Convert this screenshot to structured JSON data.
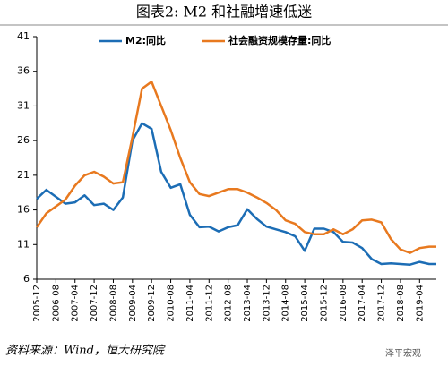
{
  "chart_data": {
    "type": "line",
    "title": "图表2: M2 和社融增速低迷",
    "source": "资料来源：Wind，恒大研究院",
    "watermark": "泽平宏观",
    "x": [
      "2005-12",
      "2006-04",
      "2006-08",
      "2006-12",
      "2007-04",
      "2007-08",
      "2007-12",
      "2008-04",
      "2008-08",
      "2008-12",
      "2009-04",
      "2009-08",
      "2009-12",
      "2010-04",
      "2010-08",
      "2010-12",
      "2011-04",
      "2011-08",
      "2011-12",
      "2012-04",
      "2012-08",
      "2012-12",
      "2013-04",
      "2013-08",
      "2013-12",
      "2014-04",
      "2014-08",
      "2014-12",
      "2015-04",
      "2015-08",
      "2015-12",
      "2016-04",
      "2016-08",
      "2016-12",
      "2017-04",
      "2017-08",
      "2017-12",
      "2018-04",
      "2018-08",
      "2018-12",
      "2019-04",
      "2019-08",
      "2019-11"
    ],
    "series": [
      {
        "name": "M2:同比",
        "color": "#1c6db5",
        "values": [
          17.6,
          18.9,
          17.9,
          16.9,
          17.1,
          18.1,
          16.7,
          16.9,
          16.0,
          17.8,
          26.0,
          28.5,
          27.7,
          21.5,
          19.2,
          19.7,
          15.3,
          13.5,
          13.6,
          12.9,
          13.5,
          13.8,
          16.1,
          14.7,
          13.6,
          13.2,
          12.8,
          12.2,
          10.1,
          13.3,
          13.3,
          12.8,
          11.4,
          11.3,
          10.5,
          8.9,
          8.2,
          8.3,
          8.2,
          8.1,
          8.5,
          8.2,
          8.2
        ]
      },
      {
        "name": "社会融资规模存量:同比",
        "color": "#e8791f",
        "values": [
          13.5,
          15.5,
          16.5,
          17.5,
          19.5,
          21.0,
          21.5,
          20.8,
          19.8,
          20.0,
          26.5,
          33.5,
          34.5,
          31.0,
          27.5,
          23.5,
          20.0,
          18.3,
          18.0,
          18.5,
          19.0,
          19.0,
          18.5,
          17.8,
          17.0,
          16.0,
          14.5,
          14.0,
          12.8,
          12.5,
          12.5,
          13.2,
          12.5,
          13.2,
          14.5,
          14.6,
          14.2,
          11.8,
          10.3,
          9.8,
          10.5,
          10.7,
          10.7
        ]
      }
    ],
    "xlim": [
      "2005-12",
      "2019-11"
    ],
    "xticks": [
      "2005-12",
      "2006-08",
      "2007-04",
      "2007-12",
      "2008-08",
      "2009-04",
      "2009-12",
      "2010-08",
      "2011-04",
      "2011-12",
      "2012-08",
      "2013-04",
      "2013-12",
      "2014-08",
      "2015-04",
      "2015-12",
      "2016-08",
      "2017-04",
      "2017-12",
      "2018-08",
      "2019-04"
    ],
    "ylim": [
      6,
      41
    ],
    "yticks": [
      6,
      11,
      16,
      21,
      26,
      31,
      36,
      41
    ],
    "grid": false,
    "legend": "top"
  }
}
